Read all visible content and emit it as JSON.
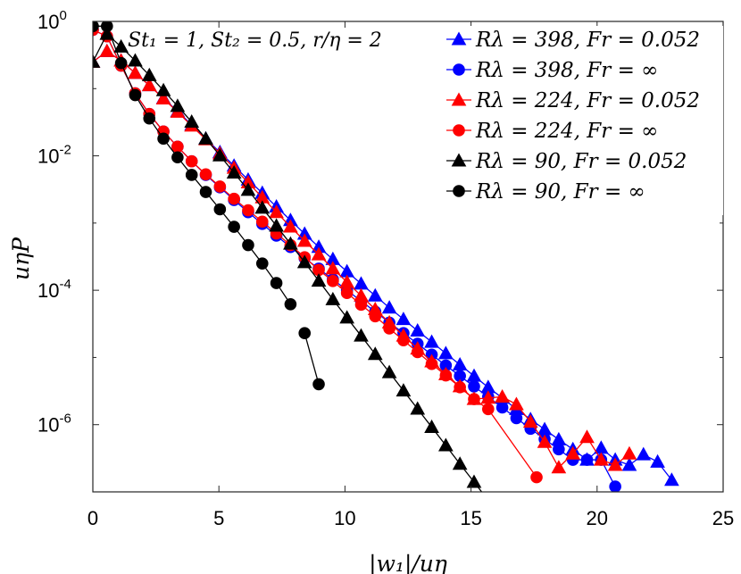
{
  "chart_data": {
    "type": "line",
    "title": "",
    "annotation": "St₁ = 1, St₂ = 0.5, r/η = 2",
    "xlabel": "|w₁|/uη",
    "ylabel": "uηP",
    "xlim": [
      0,
      25
    ],
    "ylim_log10": [
      -7,
      0
    ],
    "yscale": "log",
    "x_ticks": [
      0,
      5,
      10,
      15,
      20,
      25
    ],
    "x_tick_labels": [
      "0",
      "5",
      "10",
      "15",
      "20",
      "25"
    ],
    "y_ticks": [
      1,
      0.01,
      0.0001,
      1e-06
    ],
    "y_tick_labels": [
      {
        "base": "10",
        "exp": "0"
      },
      {
        "base": "10",
        "exp": "-2"
      },
      {
        "base": "10",
        "exp": "-4"
      },
      {
        "base": "10",
        "exp": "-6"
      }
    ],
    "legend_position": "top-right",
    "series": [
      {
        "name": "Rλ = 398, Fr = 0.052",
        "color": "#0000ff",
        "marker": "triangle",
        "x": [
          0.0,
          0.56,
          1.12,
          1.68,
          2.24,
          2.8,
          3.36,
          3.92,
          4.48,
          5.04,
          5.6,
          6.16,
          6.72,
          7.28,
          7.84,
          8.4,
          8.96,
          9.52,
          10.08,
          10.64,
          11.2,
          11.76,
          12.32,
          12.88,
          13.44,
          14.0,
          14.56,
          15.12,
          15.68,
          16.24,
          16.8,
          17.36,
          17.92,
          18.48,
          19.04,
          19.6,
          20.16,
          20.72,
          21.28,
          21.84,
          22.4,
          22.96
        ],
        "y": [
          0.25,
          0.36,
          0.26,
          0.17,
          0.112,
          0.072,
          0.046,
          0.029,
          0.018,
          0.0113,
          0.0071,
          0.0044,
          0.0028,
          0.00175,
          0.0011,
          0.00069,
          0.00044,
          0.00029,
          0.00019,
          0.000125,
          8.3e-05,
          5.5e-05,
          3.7e-05,
          2.5e-05,
          1.7e-05,
          1.15e-05,
          7.8e-06,
          5.3e-06,
          3.6e-06,
          2.5e-06,
          1.7e-06,
          1.2e-06,
          8.5e-07,
          6e-07,
          4.3e-07,
          3e-07,
          4.5e-07,
          3e-07,
          2.5e-07,
          3.6e-07,
          2.8e-07,
          1.5e-07
        ]
      },
      {
        "name": "Rλ = 398, Fr = ∞",
        "color": "#0000ff",
        "marker": "circle",
        "x": [
          0.0,
          0.56,
          1.12,
          1.68,
          2.24,
          2.8,
          3.36,
          3.92,
          4.48,
          5.04,
          5.6,
          6.16,
          6.72,
          7.28,
          7.84,
          8.4,
          8.96,
          9.52,
          10.08,
          10.64,
          11.2,
          11.76,
          12.32,
          12.88,
          13.44,
          14.0,
          14.56,
          15.12,
          15.68,
          16.24,
          16.8,
          17.36,
          17.92,
          18.48,
          19.04,
          19.6,
          20.16,
          20.72
        ],
        "y": [
          0.75,
          0.6,
          0.22,
          0.085,
          0.042,
          0.023,
          0.0137,
          0.0083,
          0.0052,
          0.0034,
          0.0022,
          0.00145,
          0.00097,
          0.00065,
          0.00044,
          0.0003,
          0.00021,
          0.000145,
          0.0001,
          6.9e-05,
          4.8e-05,
          3.3e-05,
          2.3e-05,
          1.6e-05,
          1.1e-05,
          7.6e-06,
          5.3e-06,
          3.7e-06,
          2.6e-06,
          1.8e-06,
          1.25e-06,
          8.7e-07,
          6.1e-07,
          4.3e-07,
          3e-07,
          3e-07,
          3e-07,
          1.2e-07
        ]
      },
      {
        "name": "Rλ = 224, Fr = 0.052",
        "color": "#ff0000",
        "marker": "triangle",
        "x": [
          0.0,
          0.56,
          1.12,
          1.68,
          2.24,
          2.8,
          3.36,
          3.92,
          4.48,
          5.04,
          5.6,
          6.16,
          6.72,
          7.28,
          7.84,
          8.4,
          8.96,
          9.52,
          10.08,
          10.64,
          11.2,
          11.76,
          12.32,
          12.88,
          13.44,
          14.0,
          14.56,
          15.12,
          15.68,
          16.24,
          16.8,
          17.36,
          17.92,
          18.48,
          19.04,
          19.6,
          20.16,
          20.72,
          21.28
        ],
        "y": [
          0.25,
          0.36,
          0.26,
          0.17,
          0.112,
          0.071,
          0.045,
          0.028,
          0.0175,
          0.0108,
          0.0066,
          0.004,
          0.0024,
          0.00145,
          0.00088,
          0.00054,
          0.00034,
          0.00021,
          0.000132,
          8.3e-05,
          5.2e-05,
          3.3e-05,
          2.1e-05,
          1.35e-05,
          8.7e-06,
          5.6e-06,
          3.7e-06,
          2.4e-06,
          2.5e-06,
          2.6e-06,
          2e-06,
          1.1e-06,
          5.5e-07,
          2.3e-07,
          3.7e-07,
          6.5e-07,
          3e-07,
          2.5e-07,
          3.7e-07
        ]
      },
      {
        "name": "Rλ = 224, Fr = ∞",
        "color": "#ff0000",
        "marker": "circle",
        "x": [
          0.0,
          0.56,
          1.12,
          1.68,
          2.24,
          2.8,
          3.36,
          3.92,
          4.48,
          5.04,
          5.6,
          6.16,
          6.72,
          7.28,
          7.84,
          8.4,
          8.96,
          9.52,
          10.08,
          10.64,
          11.2,
          11.76,
          12.32,
          12.88,
          13.44,
          14.0,
          14.56,
          15.12,
          15.68,
          17.6
        ],
        "y": [
          0.75,
          0.6,
          0.22,
          0.085,
          0.042,
          0.023,
          0.0137,
          0.0083,
          0.0053,
          0.0035,
          0.0023,
          0.00155,
          0.00105,
          0.0007,
          0.00047,
          0.00031,
          0.0002,
          0.000137,
          9.1e-05,
          6.1e-05,
          4.1e-05,
          2.7e-05,
          1.8e-05,
          1.2e-05,
          8e-06,
          5.4e-06,
          3.6e-06,
          2.4e-06,
          1.7e-06,
          1.65e-07
        ]
      },
      {
        "name": "Rλ = 90, Fr = 0.052",
        "color": "#000000",
        "marker": "triangle",
        "x": [
          0.0,
          0.56,
          1.12,
          1.68,
          2.24,
          2.8,
          3.36,
          3.92,
          4.48,
          5.04,
          5.6,
          6.16,
          6.72,
          7.28,
          7.84,
          8.4,
          8.96,
          9.52,
          10.08,
          10.64,
          11.2,
          11.76,
          12.32,
          12.88,
          13.44,
          14.0,
          14.56,
          15.12,
          15.68
        ],
        "y": [
          0.25,
          0.65,
          0.42,
          0.26,
          0.158,
          0.094,
          0.055,
          0.032,
          0.018,
          0.0101,
          0.0056,
          0.0031,
          0.00168,
          0.00091,
          0.00049,
          0.00026,
          0.000138,
          7.3e-05,
          3.9e-05,
          2.1e-05,
          1.12e-05,
          6e-06,
          3.2e-06,
          1.72e-06,
          9.2e-07,
          4.9e-07,
          2.6e-07,
          1.4e-07,
          7.5e-08
        ]
      },
      {
        "name": "Rλ = 90, Fr = ∞",
        "color": "#000000",
        "marker": "circle",
        "x": [
          0.0,
          0.56,
          1.12,
          1.68,
          2.24,
          2.8,
          3.36,
          3.92,
          4.48,
          5.04,
          5.6,
          6.16,
          6.72,
          7.28,
          7.84,
          8.4,
          8.96
        ],
        "y": [
          0.85,
          0.85,
          0.24,
          0.08,
          0.036,
          0.018,
          0.0095,
          0.0052,
          0.0029,
          0.0016,
          0.00088,
          0.00047,
          0.00025,
          0.000128,
          6.2e-05,
          2.3e-05,
          4e-06
        ]
      }
    ]
  }
}
